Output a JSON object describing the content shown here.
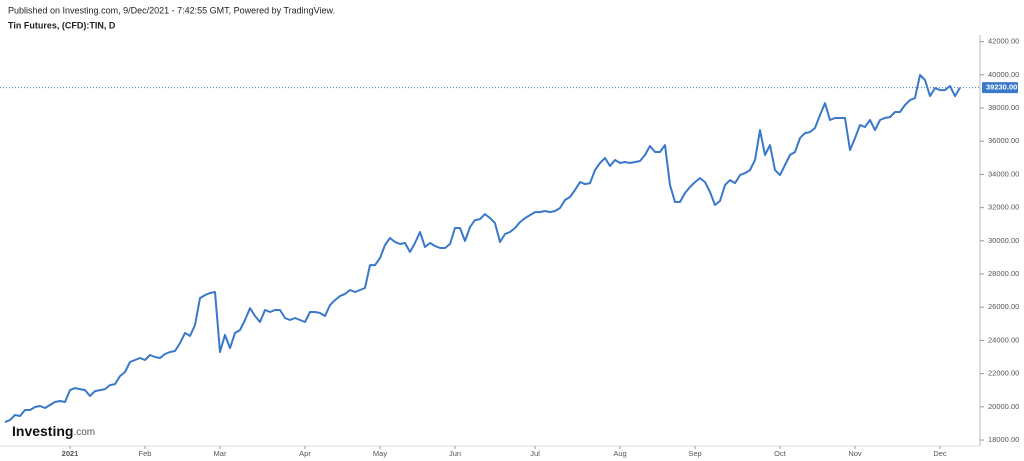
{
  "header": {
    "published": "Published on Investing.com, 9/Dec/2021 - 7:42:55 GMT, Powered by TradingView.",
    "instrument": "Tin Futures, (CFD):TIN, D"
  },
  "logo": {
    "name": "Investing",
    "suffix": ".com"
  },
  "chart_data": {
    "type": "line",
    "series": [
      {
        "name": "Tin Futures",
        "color": "#3a78c9",
        "values": [
          19080,
          19200,
          19510,
          19450,
          19810,
          19810,
          19990,
          20050,
          19930,
          20110,
          20290,
          20350,
          20290,
          21010,
          21130,
          21070,
          21010,
          20650,
          20950,
          21010,
          21070,
          21310,
          21370,
          21850,
          22100,
          22700,
          22820,
          22940,
          22820,
          23120,
          23000,
          22940,
          23180,
          23300,
          23360,
          23840,
          24450,
          24270,
          24930,
          26550,
          26730,
          26860,
          26920,
          23300,
          24330,
          23540,
          24450,
          24630,
          25230,
          25950,
          25470,
          25110,
          25830,
          25710,
          25830,
          25830,
          25350,
          25230,
          25350,
          25230,
          25110,
          25710,
          25710,
          25650,
          25470,
          26130,
          26430,
          26670,
          26800,
          27040,
          26920,
          27040,
          27160,
          28540,
          28540,
          28960,
          29750,
          30170,
          29930,
          29810,
          29870,
          29330,
          29870,
          30530,
          29630,
          29870,
          29690,
          29570,
          29570,
          29810,
          30770,
          30770,
          29990,
          30830,
          31250,
          31310,
          31610,
          31370,
          31070,
          29930,
          30410,
          30530,
          30770,
          31130,
          31370,
          31550,
          31730,
          31730,
          31800,
          31730,
          31800,
          31980,
          32460,
          32640,
          33060,
          33540,
          33420,
          33480,
          34260,
          34690,
          34990,
          34510,
          34870,
          34690,
          34750,
          34690,
          34750,
          34810,
          35170,
          35710,
          35350,
          35350,
          35770,
          33360,
          32340,
          32340,
          32880,
          33240,
          33540,
          33780,
          33540,
          32940,
          32160,
          32400,
          33360,
          33660,
          33480,
          33960,
          34080,
          34260,
          34870,
          36670,
          35170,
          35770,
          34260,
          33960,
          34570,
          35170,
          35350,
          36190,
          36490,
          36550,
          36800,
          37580,
          38300,
          37280,
          37400,
          37400,
          37400,
          35470,
          36190,
          36980,
          36860,
          37280,
          36670,
          37280,
          37400,
          37460,
          37760,
          37760,
          38180,
          38480,
          38600,
          39990,
          39690,
          38720,
          39200,
          39080,
          39080,
          39330,
          38720,
          39230
        ]
      }
    ],
    "xlim": [
      0,
      191
    ],
    "xticks": [
      {
        "value": 13,
        "label": "2021"
      },
      {
        "value": 28,
        "label": "Feb"
      },
      {
        "value": 43,
        "label": "Mar"
      },
      {
        "value": 60,
        "label": "Apr"
      },
      {
        "value": 75,
        "label": "May"
      },
      {
        "value": 90,
        "label": "Jun"
      },
      {
        "value": 106,
        "label": "Jul"
      },
      {
        "value": 123,
        "label": "Aug"
      },
      {
        "value": 138,
        "label": "Sep"
      },
      {
        "value": 155,
        "label": "Oct"
      },
      {
        "value": 170,
        "label": "Nov"
      },
      {
        "value": 187,
        "label": "Dec"
      }
    ],
    "ylim": [
      17700,
      42400
    ],
    "yticks": [
      {
        "value": 18000,
        "label": "18000.00"
      },
      {
        "value": 20000,
        "label": "20000.00"
      },
      {
        "value": 22000,
        "label": "22000.00"
      },
      {
        "value": 24000,
        "label": "24000.00"
      },
      {
        "value": 26000,
        "label": "26000.00"
      },
      {
        "value": 28000,
        "label": "28000.00"
      },
      {
        "value": 30000,
        "label": "30000.00"
      },
      {
        "value": 32000,
        "label": "32000.00"
      },
      {
        "value": 34000,
        "label": "34000.00"
      },
      {
        "value": 36000,
        "label": "36000.00"
      },
      {
        "value": 38000,
        "label": "38000.00"
      },
      {
        "value": 40000,
        "label": "40000.00"
      },
      {
        "value": 42000,
        "label": "42000.00"
      }
    ],
    "last_price": {
      "value": 39230,
      "label": "39230.00"
    }
  }
}
